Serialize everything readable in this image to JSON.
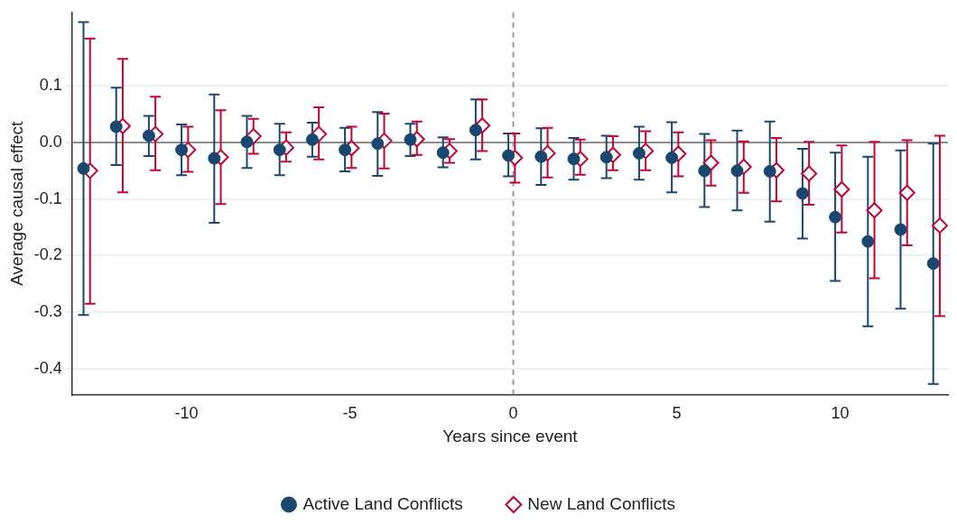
{
  "chart_data": {
    "type": "scatter",
    "xlabel": "Years since event",
    "ylabel": "Average causal effect",
    "xlim": [
      -13.5,
      13.3
    ],
    "xticks": [
      -10,
      -5,
      0,
      5,
      10
    ],
    "ylim": [
      -0.446,
      0.23
    ],
    "yticks": [
      {
        "value": -0.4,
        "label": "-0.4"
      },
      {
        "value": -0.3,
        "label": "-0.3"
      },
      {
        "value": -0.2,
        "label": "-0.2"
      },
      {
        "value": -0.1,
        "label": "-0.1"
      },
      {
        "value": 0,
        "label": "0.0"
      },
      {
        "value": 0.1,
        "label": "0.1"
      }
    ],
    "grid": "y",
    "legend": "bottom",
    "ref_lines": [
      {
        "axis": "y",
        "value": 0,
        "color": "#8c8c8c",
        "line_style": "solid"
      },
      {
        "axis": "x",
        "value": 0,
        "color": "#9a9a9a",
        "line_style": "dashed"
      }
    ],
    "series": [
      {
        "name": "Active Land Conflicts",
        "color": "#1a476f",
        "marker": "circle",
        "x": [
          -13.15,
          -12.15,
          -11.15,
          -10.15,
          -9.15,
          -8.15,
          -7.15,
          -6.15,
          -5.15,
          -4.15,
          -3.15,
          -2.15,
          -1.15,
          -0.15,
          0.85,
          1.85,
          2.85,
          3.85,
          4.85,
          5.85,
          6.85,
          7.85,
          8.85,
          9.85,
          10.85,
          11.85,
          12.85
        ],
        "values": [
          -0.046,
          0.028,
          0.012,
          -0.013,
          -0.028,
          0.001,
          -0.013,
          0.005,
          -0.013,
          -0.002,
          0.005,
          -0.018,
          0.022,
          -0.023,
          -0.025,
          -0.029,
          -0.026,
          -0.019,
          -0.027,
          -0.05,
          -0.05,
          -0.051,
          -0.09,
          -0.132,
          -0.175,
          -0.154,
          -0.214
        ],
        "errors": [
          [
            -0.305,
            0.213
          ],
          [
            -0.04,
            0.097
          ],
          [
            -0.024,
            0.047
          ],
          [
            -0.058,
            0.032
          ],
          [
            -0.142,
            0.085
          ],
          [
            -0.045,
            0.047
          ],
          [
            -0.058,
            0.033
          ],
          [
            -0.025,
            0.035
          ],
          [
            -0.051,
            0.026
          ],
          [
            -0.059,
            0.054
          ],
          [
            -0.024,
            0.033
          ],
          [
            -0.044,
            0.009
          ],
          [
            -0.03,
            0.076
          ],
          [
            -0.06,
            0.016
          ],
          [
            -0.075,
            0.025
          ],
          [
            -0.066,
            0.008
          ],
          [
            -0.063,
            0.012
          ],
          [
            -0.066,
            0.028
          ],
          [
            -0.088,
            0.036
          ],
          [
            -0.114,
            0.015
          ],
          [
            -0.12,
            0.021
          ],
          [
            -0.14,
            0.037
          ],
          [
            -0.17,
            -0.011
          ],
          [
            -0.245,
            -0.018
          ],
          [
            -0.325,
            -0.025
          ],
          [
            -0.294,
            -0.014
          ],
          [
            -0.427,
            -0.002
          ]
        ]
      },
      {
        "name": "New Land Conflicts",
        "color": "#c10534",
        "marker": "diamond",
        "x": [
          -12.95,
          -11.95,
          -10.95,
          -9.95,
          -8.95,
          -7.95,
          -6.95,
          -5.95,
          -4.95,
          -3.95,
          -2.95,
          -1.95,
          -0.95,
          0.05,
          1.05,
          2.05,
          3.05,
          4.05,
          5.05,
          6.05,
          7.05,
          8.05,
          9.05,
          10.05,
          11.05,
          12.05,
          13.05
        ],
        "values": [
          -0.05,
          0.029,
          0.015,
          -0.013,
          -0.026,
          0.011,
          -0.009,
          0.015,
          -0.01,
          0.003,
          0.006,
          -0.015,
          0.03,
          -0.027,
          -0.019,
          -0.029,
          -0.022,
          -0.015,
          -0.02,
          -0.036,
          -0.043,
          -0.049,
          -0.055,
          -0.083,
          -0.12,
          -0.089,
          -0.147
        ],
        "errors": [
          [
            -0.285,
            0.184
          ],
          [
            -0.088,
            0.148
          ],
          [
            -0.049,
            0.081
          ],
          [
            -0.052,
            0.028
          ],
          [
            -0.109,
            0.057
          ],
          [
            -0.02,
            0.042
          ],
          [
            -0.034,
            0.018
          ],
          [
            -0.03,
            0.062
          ],
          [
            -0.045,
            0.028
          ],
          [
            -0.046,
            0.051
          ],
          [
            -0.022,
            0.037
          ],
          [
            -0.036,
            0.006
          ],
          [
            -0.015,
            0.076
          ],
          [
            -0.071,
            0.016
          ],
          [
            -0.062,
            0.026
          ],
          [
            -0.057,
            0.005
          ],
          [
            -0.049,
            0.011
          ],
          [
            -0.049,
            0.02
          ],
          [
            -0.06,
            0.018
          ],
          [
            -0.076,
            0.004
          ],
          [
            -0.089,
            0.002
          ],
          [
            -0.104,
            0.008
          ],
          [
            -0.11,
            0.001
          ],
          [
            -0.159,
            -0.005
          ],
          [
            -0.24,
            0.001
          ],
          [
            -0.182,
            0.004
          ],
          [
            -0.307,
            0.012
          ]
        ]
      }
    ]
  }
}
